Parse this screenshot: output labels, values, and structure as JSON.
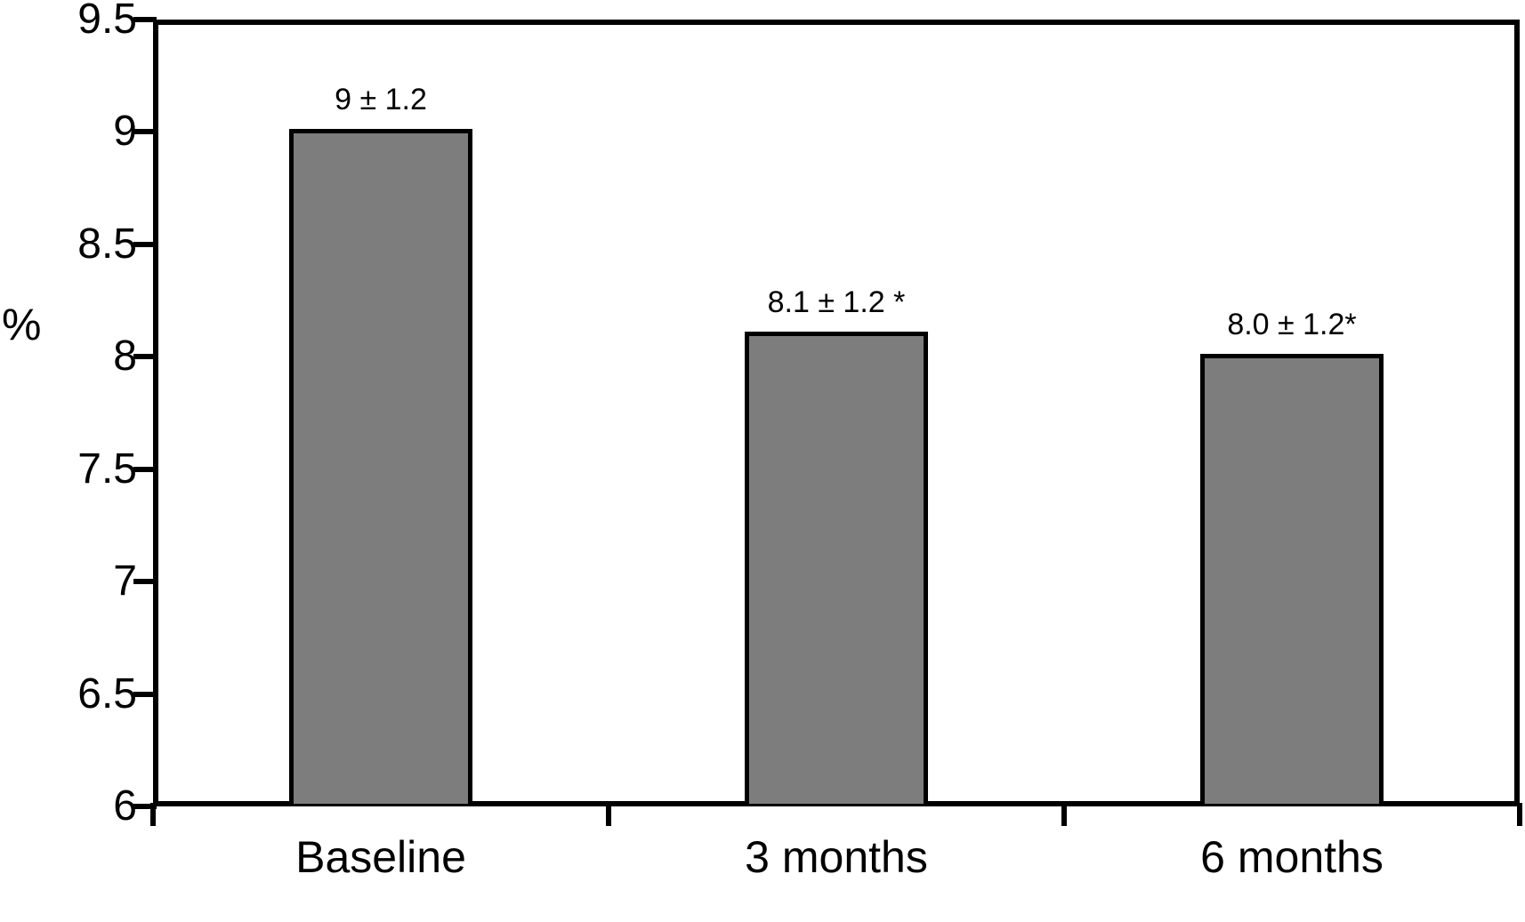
{
  "chart_data": {
    "type": "bar",
    "title": "",
    "xlabel": "",
    "ylabel": "%",
    "categories": [
      "Baseline",
      "3 months",
      "6 months"
    ],
    "values": [
      9,
      8.1,
      8.0
    ],
    "bar_labels": [
      "9 ± 1.2",
      "8.1 ± 1.2 *",
      "8.0 ± 1.2*"
    ],
    "ylim": [
      6,
      9.5
    ],
    "ytick_step": 0.5,
    "ytick_labels": [
      "6",
      "6.5",
      "7",
      "7.5",
      "8",
      "8.5",
      "9",
      "9.5"
    ],
    "grid": false,
    "legend_position": "none",
    "bar_color": "#7d7d7d",
    "bar_border_color": "#000000",
    "axis_color": "#000000"
  }
}
